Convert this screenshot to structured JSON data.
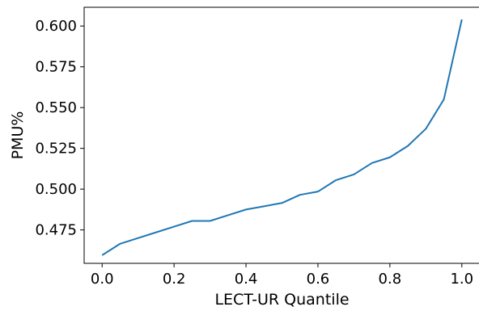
{
  "chart_data": {
    "type": "line",
    "title": "",
    "xlabel": "LECT-UR Quantile",
    "ylabel": "PMU%",
    "xlim": [
      -0.05,
      1.05
    ],
    "ylim": [
      0.4545,
      0.6115
    ],
    "grid": false,
    "xticks": [
      0.0,
      0.2,
      0.4,
      0.6,
      0.8,
      1.0
    ],
    "xtick_labels": [
      "0.0",
      "0.2",
      "0.4",
      "0.6",
      "0.8",
      "1.0"
    ],
    "yticks": [
      0.475,
      0.5,
      0.525,
      0.55,
      0.575,
      0.6
    ],
    "ytick_labels": [
      "0.475",
      "0.500",
      "0.525",
      "0.550",
      "0.575",
      "0.600"
    ],
    "series": [
      {
        "color": "#1f77b4",
        "x": [
          0.0,
          0.05,
          0.1,
          0.15,
          0.2,
          0.25,
          0.3,
          0.35,
          0.4,
          0.45,
          0.5,
          0.55,
          0.6,
          0.65,
          0.7,
          0.75,
          0.8,
          0.85,
          0.9,
          0.95,
          1.0
        ],
        "y": [
          0.4595,
          0.4665,
          0.47,
          0.4735,
          0.477,
          0.4805,
          0.4805,
          0.484,
          0.4875,
          0.4895,
          0.4915,
          0.4965,
          0.4985,
          0.5055,
          0.509,
          0.516,
          0.5195,
          0.5265,
          0.537,
          0.555,
          0.604
        ]
      }
    ]
  }
}
